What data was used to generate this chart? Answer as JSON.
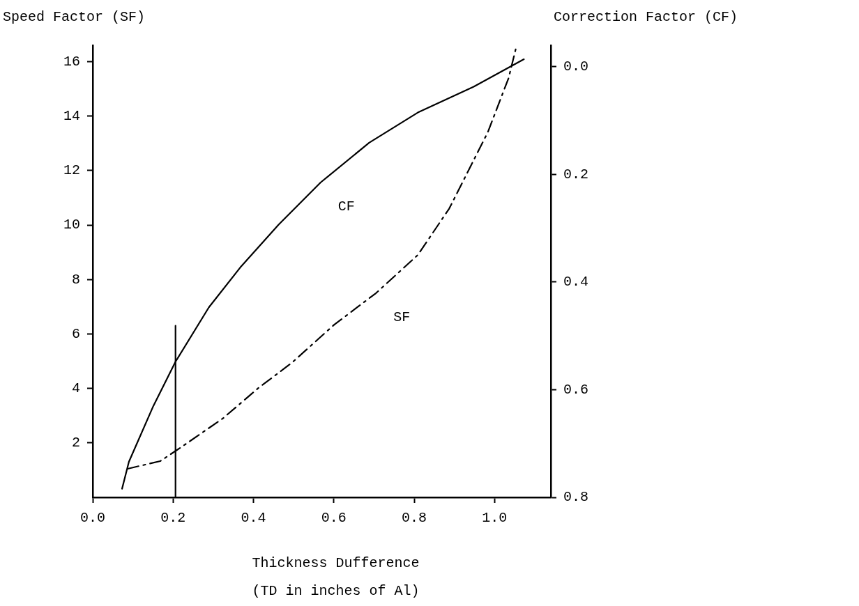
{
  "chart_data": {
    "type": "line",
    "ylabel": "Speed Factor (SF)",
    "y2label": "Correction Factor (CF)",
    "xlabel": "Thickness Dufference\n(TD in inches of Al)",
    "xlim": [
      0,
      1.14
    ],
    "xticks": [
      {
        "value": 0,
        "label": "0.0"
      },
      {
        "value": 0.2,
        "label": "0.2"
      },
      {
        "value": 0.4,
        "label": "0.4"
      },
      {
        "value": 0.6,
        "label": "0.6"
      },
      {
        "value": 0.8,
        "label": "0.8"
      },
      {
        "value": 1.0,
        "label": "1.0"
      }
    ],
    "ylim": [
      0,
      16.6
    ],
    "yticks": [
      2,
      4,
      6,
      8,
      10,
      12,
      14,
      16
    ],
    "y2lim": [
      0.8,
      -0.04
    ],
    "y2ticks": [
      {
        "value": 0,
        "label": "0.0"
      },
      {
        "value": 0.2,
        "label": "0.2"
      },
      {
        "value": 0.4,
        "label": "0.4"
      },
      {
        "value": 0.6,
        "label": "0.6"
      },
      {
        "value": 0.8,
        "label": "0.8"
      }
    ],
    "grid": false,
    "legend": false,
    "marker": "none",
    "series": [
      {
        "name": "CF",
        "color": "#000000",
        "axis": "y2",
        "line_style": "solid",
        "x": [
          0.073,
          0.09,
          0.151,
          0.206,
          0.289,
          0.367,
          0.463,
          0.567,
          0.688,
          0.809,
          0.948,
          1.073
        ],
        "values": [
          0.784,
          0.734,
          0.63,
          0.548,
          0.447,
          0.373,
          0.293,
          0.215,
          0.141,
          0.085,
          0.037,
          -0.014
        ]
      },
      {
        "name": "SF",
        "color": "#000000",
        "line_style": "dashed",
        "x": [
          0.087,
          0.168,
          0.22,
          0.324,
          0.411,
          0.497,
          0.601,
          0.705,
          0.809,
          0.887,
          0.983,
          1.035,
          1.055
        ],
        "values": [
          1.05,
          1.33,
          1.84,
          2.9,
          4.0,
          4.96,
          6.34,
          7.5,
          8.9,
          10.6,
          13.4,
          15.4,
          16.6
        ]
      },
      {
        "color": "#000000",
        "line_style": "solid",
        "x": [
          0.206,
          0.206
        ],
        "values": [
          0,
          6.3
        ]
      }
    ]
  }
}
